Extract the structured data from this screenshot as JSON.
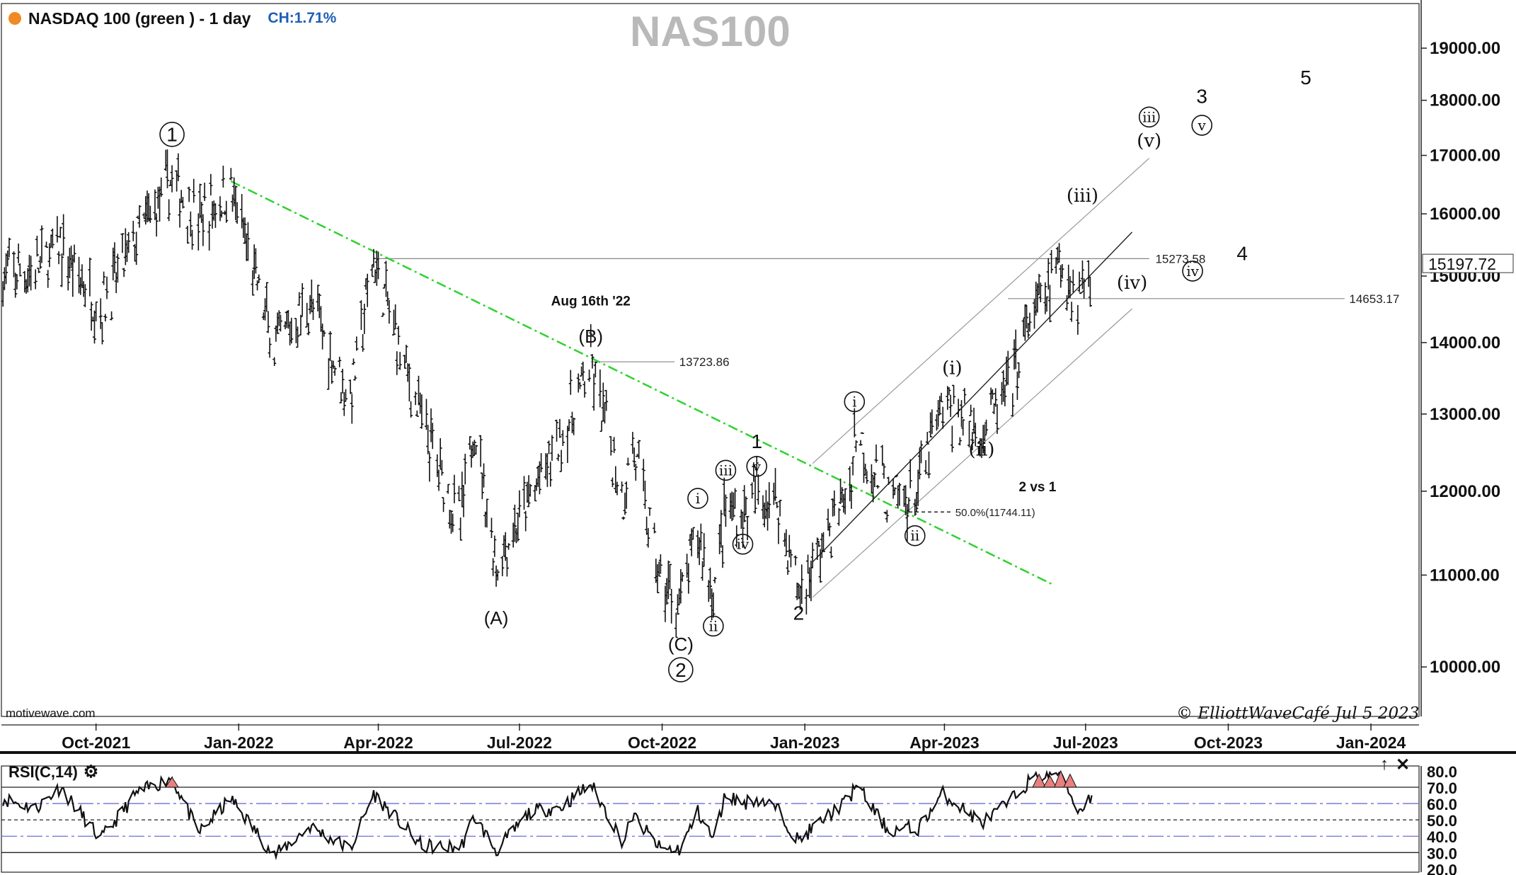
{
  "header": {
    "title": "NASDAQ 100 (green ) - 1 day",
    "change": "CH:1.71%",
    "symbol": "NAS100",
    "dot_color": "#f08a24"
  },
  "footer": {
    "source": "motivewave.com",
    "copyright": "© ElliottWaveCafé Jul 5 2023"
  },
  "rsi_panel": {
    "title": "RSI(C,14)",
    "settings_icon": "gear-icon",
    "controls": [
      "↑",
      "✕"
    ]
  },
  "chart_data": [
    {
      "type": "ohlc",
      "title": "NASDAQ 100 (green ) - 1 day",
      "y_axis": {
        "ticks": [
          10000,
          11000,
          12000,
          13000,
          14000,
          15000,
          16000,
          17000,
          18000,
          19000
        ],
        "tick_labels": [
          "10000.00",
          "11000.00",
          "12000.00",
          "13000.00",
          "14000.00",
          "15000.00",
          "16000.00",
          "17000.00",
          "18000.00",
          "19000.00"
        ],
        "scale": "log",
        "range": [
          9500,
          19900
        ]
      },
      "x_axis": {
        "tick_labels": [
          "Oct-2021",
          "Jan-2022",
          "Apr-2022",
          "Jul-2022",
          "Oct-2022",
          "Jan-2023",
          "Apr-2023",
          "Jul-2023",
          "Oct-2023",
          "Jan-2024"
        ],
        "range": [
          "2021-08-01",
          "2024-02-01"
        ]
      },
      "last_price": "15197.72",
      "series": [
        {
          "values": [
            [
              "2021-08-02",
              15000
            ],
            [
              "2021-08-23",
              15100
            ],
            [
              "2021-09-08",
              15450
            ],
            [
              "2021-10-04",
              14500
            ],
            [
              "2021-10-27",
              15600
            ],
            [
              "2021-11-19",
              16550
            ],
            [
              "2021-12-06",
              15900
            ],
            [
              "2021-12-27",
              16400
            ],
            [
              "2022-01-24",
              13900
            ],
            [
              "2022-02-16",
              14600
            ],
            [
              "2022-03-14",
              13200
            ],
            [
              "2022-03-29",
              15250
            ],
            [
              "2022-04-29",
              12900
            ],
            [
              "2022-05-24",
              11600
            ],
            [
              "2022-06-02",
              12900
            ],
            [
              "2022-06-16",
              11100
            ],
            [
              "2022-07-08",
              11900
            ],
            [
              "2022-07-28",
              12700
            ],
            [
              "2022-08-16",
              13650
            ],
            [
              "2022-09-06",
              11900
            ],
            [
              "2022-09-12",
              12600
            ],
            [
              "2022-09-30",
              10900
            ],
            [
              "2022-10-13",
              10700
            ],
            [
              "2022-10-24",
              11500
            ],
            [
              "2022-11-03",
              10800
            ],
            [
              "2022-11-11",
              11800
            ],
            [
              "2022-11-22",
              11700
            ],
            [
              "2022-12-01",
              12000
            ],
            [
              "2022-12-14",
              11900
            ],
            [
              "2022-12-28",
              10800
            ],
            [
              "2023-01-06",
              11100
            ],
            [
              "2023-01-31",
              12100
            ],
            [
              "2023-02-02",
              12800
            ],
            [
              "2023-02-24",
              11900
            ],
            [
              "2023-03-09",
              11900
            ],
            [
              "2023-03-13",
              11950
            ],
            [
              "2023-03-31",
              13100
            ],
            [
              "2023-04-06",
              13000
            ],
            [
              "2023-04-25",
              12800
            ],
            [
              "2023-05-12",
              13300
            ],
            [
              "2023-05-26",
              14300
            ],
            [
              "2023-06-15",
              15150
            ],
            [
              "2023-06-26",
              14700
            ],
            [
              "2023-07-05",
              15197.72
            ]
          ]
        }
      ],
      "horizontal_levels": [
        {
          "value": 15273.58,
          "label": "15273.58"
        },
        {
          "value": 14653.17,
          "label": "14653.17"
        },
        {
          "value": 13723.86,
          "label": "13723.86"
        },
        {
          "value": 11744.11,
          "label": "50.0%(11744.11)"
        }
      ],
      "trendline": {
        "from": [
          "2021-12-27",
          16550
        ],
        "to": [
          "2023-06-09",
          10900
        ],
        "color": "#2fd22f",
        "style": "dash-dot"
      },
      "channel": {
        "mid": {
          "from": [
            "2023-01-06",
            11150
          ],
          "to": [
            "2023-07-31",
            15700
          ]
        },
        "upper": {
          "from": [
            "2023-01-06",
            12350
          ],
          "to": [
            "2023-08-11",
            16950
          ]
        },
        "lower": {
          "from": [
            "2023-01-06",
            10750
          ],
          "to": [
            "2023-07-31",
            14500
          ]
        }
      },
      "annotations": {
        "wave_labels": [
          {
            "text": "1",
            "circled": true,
            "at": [
              "2021-11-19",
              17250
            ]
          },
          {
            "text": "(A)",
            "at": [
              "2022-06-16",
              10450
            ]
          },
          {
            "text": "(B)",
            "at": [
              "2022-08-16",
              14000
            ]
          },
          {
            "text": "(C)",
            "at": [
              "2022-10-13",
              10170
            ]
          },
          {
            "text": "2",
            "circled": true,
            "at": [
              "2022-10-13",
              9900
            ]
          },
          {
            "text": "i",
            "circled": true,
            "at": [
              "2022-10-24",
              11850
            ]
          },
          {
            "text": "ii",
            "circled": true,
            "at": [
              "2022-11-03",
              10380
            ]
          },
          {
            "text": "iii",
            "circled": true,
            "at": [
              "2022-11-11",
              12200
            ]
          },
          {
            "text": "iv",
            "circled": true,
            "at": [
              "2022-11-22",
              11300
            ]
          },
          {
            "text": "v",
            "circled": true,
            "at": [
              "2022-12-01",
              12250
            ]
          },
          {
            "text": "1",
            "at": [
              "2022-12-01",
              12550
            ]
          },
          {
            "text": "2",
            "at": [
              "2022-12-28",
              10500
            ]
          },
          {
            "text": "i",
            "circled": true,
            "at": [
              "2023-02-02",
              13100
            ]
          },
          {
            "text": "ii",
            "circled": true,
            "at": [
              "2023-03-13",
              11400
            ]
          },
          {
            "text": "(i)",
            "at": [
              "2023-04-06",
              13550
            ]
          },
          {
            "text": "(ii)",
            "at": [
              "2023-04-25",
              12450
            ]
          },
          {
            "text": "(iii)",
            "at": [
              "2023-06-29",
              16200
            ]
          },
          {
            "text": "(iv)",
            "at": [
              "2023-07-31",
              14800
            ]
          },
          {
            "text": "(v)",
            "at": [
              "2023-08-11",
              17150
            ]
          },
          {
            "text": "iii",
            "circled": true,
            "at": [
              "2023-08-11",
              17600
            ]
          },
          {
            "text": "iv",
            "circled": true,
            "at": [
              "2023-09-08",
              15000
            ]
          },
          {
            "text": "v",
            "circled": true,
            "at": [
              "2023-09-14",
              17450
            ]
          },
          {
            "text": "3",
            "at": [
              "2023-09-14",
              17950
            ]
          },
          {
            "text": "4",
            "at": [
              "2023-10-10",
              15250
            ]
          },
          {
            "text": "5",
            "at": [
              "2023-11-20",
              18300
            ]
          }
        ],
        "text_notes": [
          {
            "text": "Aug 16th '22",
            "at": [
              "2022-08-16",
              14550
            ]
          },
          {
            "text": "2 vs 1",
            "at": [
              "2023-05-31",
              12000
            ]
          }
        ]
      }
    },
    {
      "type": "line",
      "title": "RSI(C,14)",
      "y_axis": {
        "ticks": [
          20,
          30,
          40,
          50,
          60,
          70,
          80
        ],
        "tick_labels": [
          "20.0",
          "30.0",
          "40.0",
          "50.0",
          "60.0",
          "70.0",
          "80.0"
        ],
        "range": [
          18,
          83
        ]
      },
      "reference_lines": [
        30,
        40,
        50,
        60,
        70
      ],
      "series": [
        {
          "values": [
            [
              "2021-08-02",
              63
            ],
            [
              "2021-08-23",
              57
            ],
            [
              "2021-09-08",
              70
            ],
            [
              "2021-10-04",
              38
            ],
            [
              "2021-10-27",
              66
            ],
            [
              "2021-11-19",
              76
            ],
            [
              "2021-12-06",
              42
            ],
            [
              "2021-12-27",
              63
            ],
            [
              "2022-01-24",
              28
            ],
            [
              "2022-02-16",
              46
            ],
            [
              "2022-03-14",
              32
            ],
            [
              "2022-03-29",
              66
            ],
            [
              "2022-04-29",
              34
            ],
            [
              "2022-05-24",
              33
            ],
            [
              "2022-06-02",
              52
            ],
            [
              "2022-06-16",
              31
            ],
            [
              "2022-07-08",
              55
            ],
            [
              "2022-07-28",
              58
            ],
            [
              "2022-08-16",
              72
            ],
            [
              "2022-09-06",
              36
            ],
            [
              "2022-09-12",
              53
            ],
            [
              "2022-09-30",
              32
            ],
            [
              "2022-10-13",
              32
            ],
            [
              "2022-10-24",
              55
            ],
            [
              "2022-11-03",
              38
            ],
            [
              "2022-11-11",
              66
            ],
            [
              "2022-11-22",
              60
            ],
            [
              "2022-12-01",
              63
            ],
            [
              "2022-12-14",
              57
            ],
            [
              "2022-12-28",
              37
            ],
            [
              "2023-01-06",
              45
            ],
            [
              "2023-01-31",
              64
            ],
            [
              "2023-02-02",
              73
            ],
            [
              "2023-02-24",
              43
            ],
            [
              "2023-03-09",
              45
            ],
            [
              "2023-03-13",
              42
            ],
            [
              "2023-03-31",
              66
            ],
            [
              "2023-04-06",
              62
            ],
            [
              "2023-04-25",
              48
            ],
            [
              "2023-05-12",
              60
            ],
            [
              "2023-05-26",
              74
            ],
            [
              "2023-06-15",
              80
            ],
            [
              "2023-06-26",
              55
            ],
            [
              "2023-07-05",
              65
            ]
          ]
        }
      ]
    }
  ]
}
